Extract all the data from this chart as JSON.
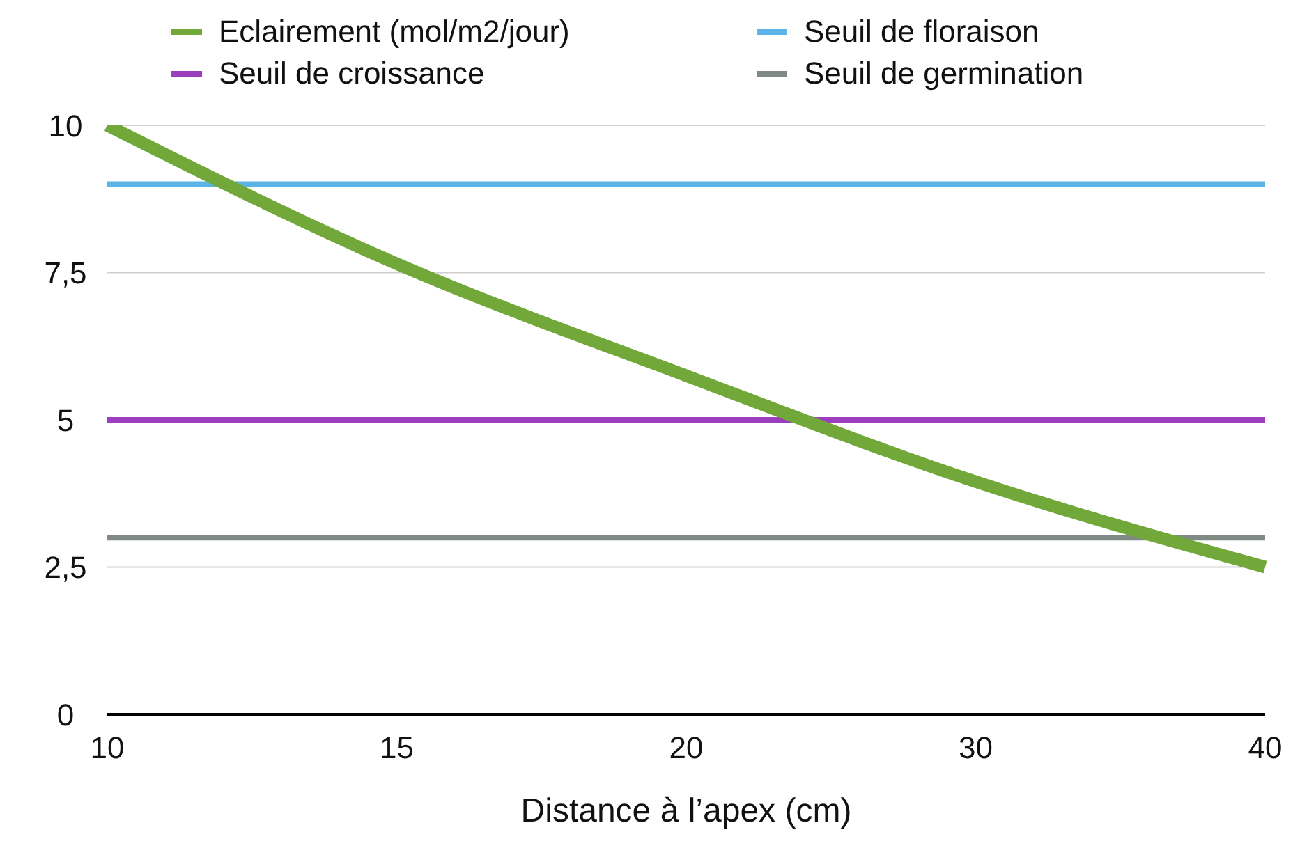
{
  "chart_data": {
    "type": "line",
    "xlabel": "Distance à l’apex (cm)",
    "categories": [
      "10",
      "15",
      "20",
      "30",
      "40"
    ],
    "series": [
      {
        "name": "Eclairement (mol/m2/jour)",
        "color": "#72a83a",
        "values": [
          10,
          7.65,
          5.75,
          3.95,
          2.5
        ]
      },
      {
        "name": "Seuil de floraison",
        "color": "#5ab4e5",
        "values": [
          9,
          9,
          9,
          9,
          9
        ]
      },
      {
        "name": "Seuil de croissance",
        "color": "#9b3fbf",
        "values": [
          5,
          5,
          5,
          5,
          5
        ]
      },
      {
        "name": "Seuil de germination",
        "color": "#7f8a85",
        "values": [
          3,
          3,
          3,
          3,
          3
        ]
      }
    ],
    "ylim": [
      0,
      10
    ],
    "yticks": [
      0,
      {
        "value": 2.5,
        "label": "2,5"
      },
      5,
      {
        "value": 7.5,
        "label": "7,5"
      },
      10
    ],
    "grid": "y",
    "legend": "top",
    "marker": "none",
    "line_style": "solid"
  }
}
